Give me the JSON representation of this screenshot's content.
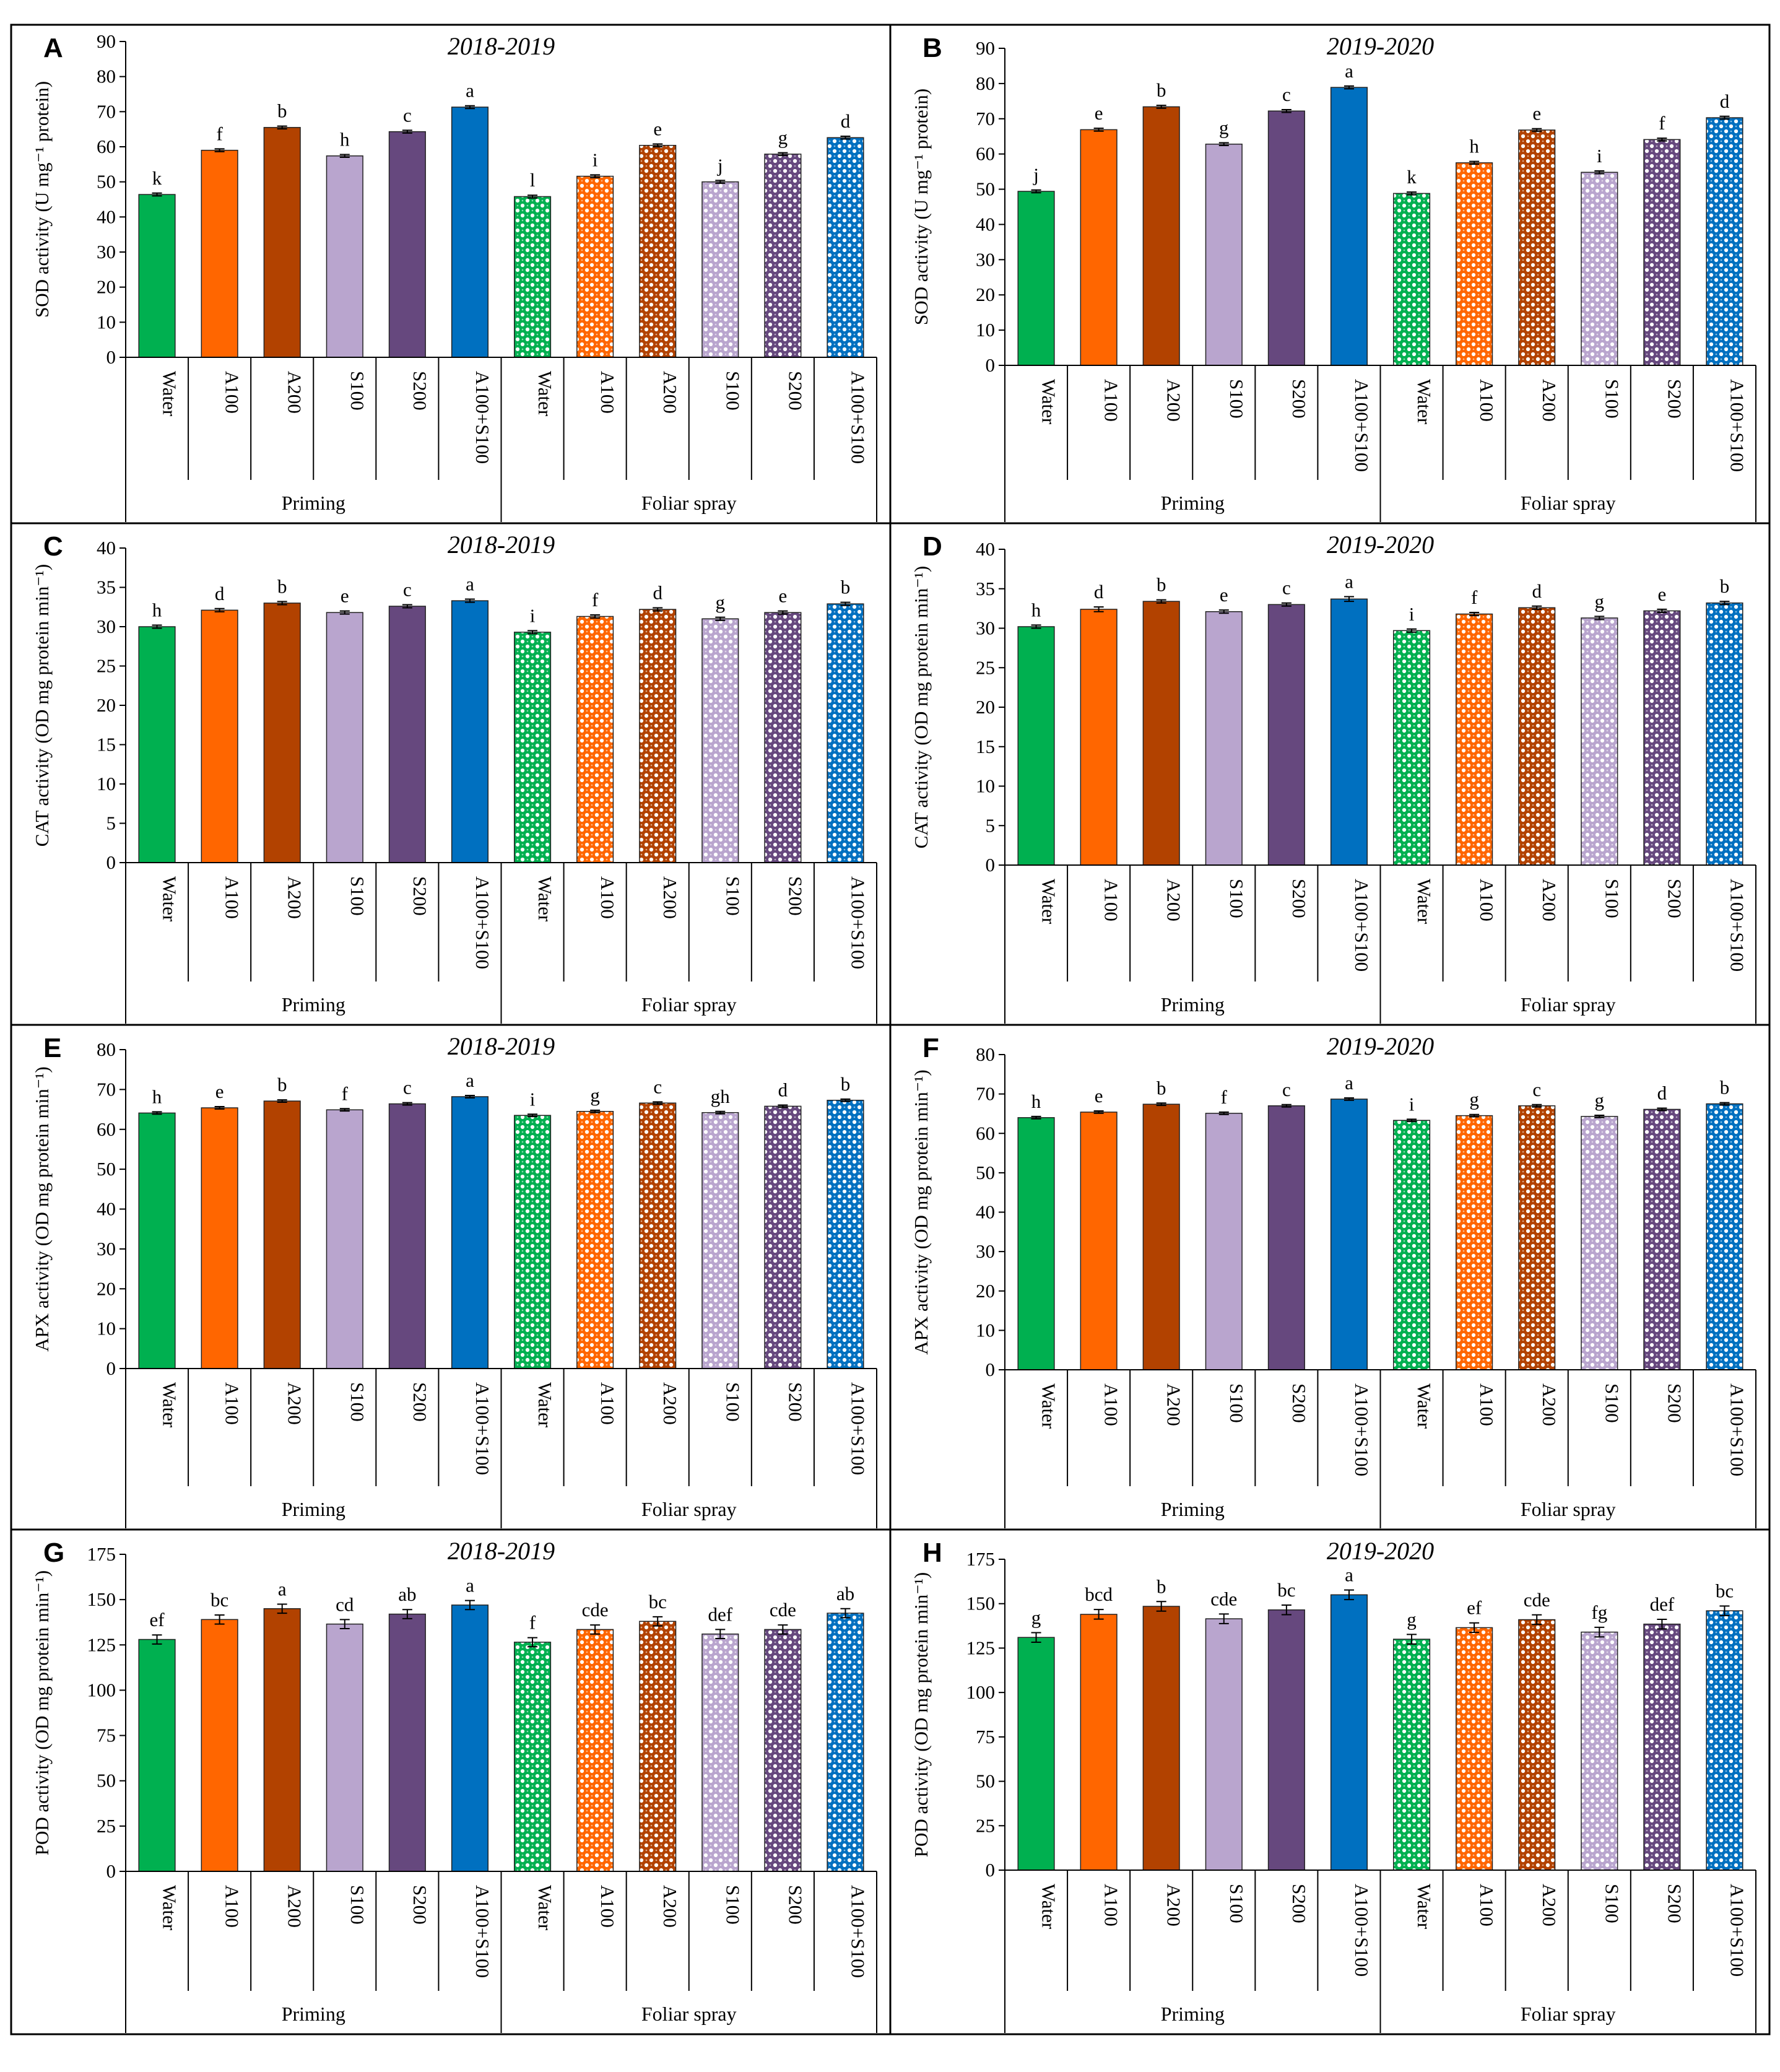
{
  "figure": {
    "groups": [
      "Priming",
      "Foliar spray"
    ],
    "treatments": [
      "Water",
      "A100",
      "A200",
      "S100",
      "S200",
      "A100+S100"
    ]
  },
  "colors": {
    "Water": "#00B050",
    "A100": "#FF6600",
    "A200": "#B24200",
    "S100": "#B9A5CE",
    "S200": "#66487E",
    "A100+S100": "#0070C0"
  },
  "chart_data": [
    {
      "type": "bar",
      "panel": "A",
      "title": "2018-2019",
      "ylabel": "SOD activity (U mg⁻¹ protein)",
      "ylim": [
        0,
        90
      ],
      "ytick_step": 10,
      "categories": [
        "Water",
        "A100",
        "A200",
        "S100",
        "S200",
        "A100+S100",
        "Water",
        "A100",
        "A200",
        "S100",
        "S200",
        "A100+S100"
      ],
      "values": [
        46.4,
        59.0,
        65.5,
        57.4,
        64.3,
        71.3,
        45.8,
        51.6,
        60.4,
        50.0,
        57.9,
        62.6
      ],
      "errors": [
        0.4,
        0.4,
        0.4,
        0.4,
        0.4,
        0.4,
        0.4,
        0.4,
        0.4,
        0.4,
        0.4,
        0.4
      ],
      "letters": [
        "k",
        "f",
        "b",
        "h",
        "c",
        "a",
        "l",
        "i",
        "e",
        "j",
        "g",
        "d"
      ]
    },
    {
      "type": "bar",
      "panel": "B",
      "title": "2019-2020",
      "ylabel": "SOD activity (U mg⁻¹ protein)",
      "ylim": [
        0,
        90
      ],
      "ytick_step": 10,
      "categories": [
        "Water",
        "A100",
        "A200",
        "S100",
        "S200",
        "A100+S100",
        "Water",
        "A100",
        "A200",
        "S100",
        "S200",
        "A100+S100"
      ],
      "values": [
        49.4,
        66.9,
        73.4,
        62.8,
        72.2,
        78.9,
        48.8,
        57.5,
        66.8,
        54.8,
        64.1,
        70.3
      ],
      "errors": [
        0.4,
        0.4,
        0.4,
        0.4,
        0.4,
        0.4,
        0.4,
        0.4,
        0.4,
        0.4,
        0.4,
        0.4
      ],
      "letters": [
        "j",
        "e",
        "b",
        "g",
        "c",
        "a",
        "k",
        "h",
        "e",
        "i",
        "f",
        "d"
      ]
    },
    {
      "type": "bar",
      "panel": "C",
      "title": "2018-2019",
      "ylabel": "CAT activity (OD mg protein min⁻¹)",
      "ylim": [
        0,
        40
      ],
      "ytick_step": 5,
      "categories": [
        "Water",
        "A100",
        "A200",
        "S100",
        "S200",
        "A100+S100",
        "Water",
        "A100",
        "A200",
        "S100",
        "S200",
        "A100+S100"
      ],
      "values": [
        30.0,
        32.1,
        33.0,
        31.8,
        32.6,
        33.3,
        29.3,
        31.3,
        32.2,
        31.0,
        31.8,
        32.9
      ],
      "errors": [
        0.2,
        0.2,
        0.2,
        0.2,
        0.2,
        0.2,
        0.2,
        0.2,
        0.2,
        0.2,
        0.2,
        0.2
      ],
      "letters": [
        "h",
        "d",
        "b",
        "e",
        "c",
        "a",
        "i",
        "f",
        "d",
        "g",
        "e",
        "b"
      ]
    },
    {
      "type": "bar",
      "panel": "D",
      "title": "2019-2020",
      "ylabel": "CAT activity (OD mg protein min⁻¹)",
      "ylim": [
        0,
        40
      ],
      "ytick_step": 5,
      "categories": [
        "Water",
        "A100",
        "A200",
        "S100",
        "S200",
        "A100+S100",
        "Water",
        "A100",
        "A200",
        "S100",
        "S200",
        "A100+S100"
      ],
      "values": [
        30.2,
        32.4,
        33.4,
        32.1,
        33.0,
        33.7,
        29.7,
        31.8,
        32.6,
        31.3,
        32.2,
        33.2
      ],
      "errors": [
        0.2,
        0.3,
        0.2,
        0.2,
        0.2,
        0.3,
        0.2,
        0.2,
        0.2,
        0.2,
        0.2,
        0.2
      ],
      "letters": [
        "h",
        "d",
        "b",
        "e",
        "c",
        "a",
        "i",
        "f",
        "d",
        "g",
        "e",
        "b"
      ]
    },
    {
      "type": "bar",
      "panel": "E",
      "title": "2018-2019",
      "ylabel": "APX activity (OD mg protein min⁻¹)",
      "ylim": [
        0,
        80
      ],
      "ytick_step": 10,
      "categories": [
        "Water",
        "A100",
        "A200",
        "S100",
        "S200",
        "A100+S100",
        "Water",
        "A100",
        "A200",
        "S100",
        "S200",
        "A100+S100"
      ],
      "values": [
        64.1,
        65.4,
        67.1,
        64.9,
        66.4,
        68.2,
        63.5,
        64.5,
        66.6,
        64.2,
        65.8,
        67.3
      ],
      "errors": [
        0.3,
        0.3,
        0.3,
        0.3,
        0.3,
        0.3,
        0.3,
        0.3,
        0.3,
        0.3,
        0.3,
        0.3
      ],
      "letters": [
        "h",
        "e",
        "b",
        "f",
        "c",
        "a",
        "i",
        "g",
        "c",
        "gh",
        "d",
        "b"
      ]
    },
    {
      "type": "bar",
      "panel": "F",
      "title": "2019-2020",
      "ylabel": "APX activity (OD mg protein min⁻¹)",
      "ylim": [
        0,
        80
      ],
      "ytick_step": 10,
      "categories": [
        "Water",
        "A100",
        "A200",
        "S100",
        "S200",
        "A100+S100",
        "Water",
        "A100",
        "A200",
        "S100",
        "S200",
        "A100+S100"
      ],
      "values": [
        64.0,
        65.4,
        67.4,
        65.1,
        67.0,
        68.7,
        63.3,
        64.5,
        67.0,
        64.3,
        66.1,
        67.5
      ],
      "errors": [
        0.3,
        0.3,
        0.3,
        0.3,
        0.3,
        0.3,
        0.3,
        0.3,
        0.3,
        0.3,
        0.3,
        0.3
      ],
      "letters": [
        "h",
        "e",
        "b",
        "f",
        "c",
        "a",
        "i",
        "g",
        "c",
        "g",
        "d",
        "b"
      ]
    },
    {
      "type": "bar",
      "panel": "G",
      "title": "2018-2019",
      "ylabel": "POD activity (OD mg protein min⁻¹)",
      "ylim": [
        0,
        175
      ],
      "ytick_step": 25,
      "categories": [
        "Water",
        "A100",
        "A200",
        "S100",
        "S200",
        "A100+S100",
        "Water",
        "A100",
        "A200",
        "S100",
        "S200",
        "A100+S100"
      ],
      "values": [
        128,
        139,
        145,
        136.5,
        142,
        147,
        126.5,
        133.5,
        138,
        131,
        133.5,
        142.5
      ],
      "errors": [
        2.5,
        2.5,
        2.5,
        2.5,
        2.5,
        2.5,
        2.5,
        2.5,
        2.5,
        2.5,
        2.5,
        2.5
      ],
      "letters": [
        "ef",
        "bc",
        "a",
        "cd",
        "ab",
        "a",
        "f",
        "cde",
        "bc",
        "def",
        "cde",
        "ab"
      ]
    },
    {
      "type": "bar",
      "panel": "H",
      "title": "2019-2020",
      "ylabel": "POD activity (OD mg protein min⁻¹)",
      "ylim": [
        0,
        175
      ],
      "ytick_step": 25,
      "categories": [
        "Water",
        "A100",
        "A200",
        "S100",
        "S200",
        "A100+S100",
        "Water",
        "A100",
        "A200",
        "S100",
        "S200",
        "A100+S100"
      ],
      "values": [
        131,
        144,
        148.5,
        141.5,
        146.5,
        155,
        130,
        136.5,
        141,
        134,
        138.5,
        146
      ],
      "errors": [
        2.7,
        2.7,
        2.7,
        2.7,
        2.7,
        2.7,
        2.7,
        2.7,
        2.7,
        2.7,
        2.7,
        2.7
      ],
      "letters": [
        "g",
        "bcd",
        "b",
        "cde",
        "bc",
        "a",
        "g",
        "ef",
        "cde",
        "fg",
        "def",
        "bc"
      ]
    }
  ]
}
